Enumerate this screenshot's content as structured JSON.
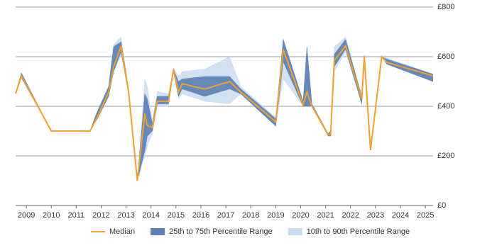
{
  "chart_data": {
    "type": "line-band",
    "x": [
      2008.57,
      2008.8,
      2010.0,
      2011.55,
      2011.85,
      2012.3,
      2012.5,
      2012.8,
      2013.1,
      2013.45,
      2013.75,
      2013.85,
      2014.05,
      2014.25,
      2014.7,
      2014.9,
      2015.1,
      2015.25,
      2016.15,
      2017.15,
      2017.6,
      2019.0,
      2019.3,
      2020.1,
      2020.25,
      2020.45,
      2021.1,
      2021.2,
      2021.35,
      2021.8,
      2022.45,
      2022.55,
      2022.8,
      2023.25,
      2023.45,
      2025.3
    ],
    "series": [
      {
        "name": "10th to 90th Percentile Range",
        "color": "#c9dbf0",
        "low": [
          451,
          515,
          300,
          300,
          350,
          440,
          540,
          610,
          450,
          100,
          200,
          240,
          290,
          400,
          400,
          540,
          430,
          450,
          420,
          410,
          450,
          320,
          510,
          400,
          400,
          400,
          280,
          280,
          540,
          620,
          410,
          600,
          223,
          600,
          570,
          500
        ],
        "high": [
          451,
          535,
          300,
          300,
          380,
          480,
          650,
          680,
          470,
          100,
          510,
          480,
          340,
          460,
          450,
          555,
          520,
          540,
          550,
          600,
          480,
          355,
          670,
          420,
          640,
          410,
          290,
          300,
          640,
          680,
          440,
          605,
          223,
          600,
          595,
          530
        ]
      },
      {
        "name": "25th to 75th Percentile Range",
        "color": "#5a80b4",
        "low": [
          451,
          515,
          300,
          300,
          350,
          440,
          540,
          620,
          450,
          100,
          220,
          280,
          300,
          410,
          410,
          540,
          440,
          470,
          440,
          470,
          450,
          320,
          580,
          400,
          400,
          400,
          280,
          280,
          560,
          630,
          410,
          600,
          223,
          600,
          570,
          500
        ],
        "high": [
          451,
          535,
          300,
          300,
          380,
          480,
          640,
          660,
          470,
          100,
          450,
          430,
          330,
          440,
          440,
          550,
          500,
          510,
          520,
          520,
          470,
          350,
          670,
          420,
          640,
          410,
          290,
          300,
          610,
          670,
          440,
          605,
          223,
          600,
          590,
          530
        ]
      },
      {
        "name": "Median",
        "color": "#f0a030",
        "values": [
          451,
          523,
          300,
          300,
          357,
          457,
          557,
          643,
          457,
          100,
          371,
          323,
          314,
          420,
          420,
          549,
          457,
          491,
          469,
          500,
          457,
          337,
          629,
          406,
          457,
          400,
          286,
          286,
          586,
          643,
          429,
          600,
          223,
          600,
          577,
          523
        ]
      }
    ],
    "xlim": [
      2008.57,
      2025.31
    ],
    "xticks": [
      2009,
      2010,
      2011,
      2012,
      2013,
      2014,
      2015,
      2016,
      2017,
      2018,
      2019,
      2020,
      2021,
      2022,
      2023,
      2024,
      2025
    ],
    "ylim": [
      0,
      800
    ],
    "yticks": [
      {
        "value": 0,
        "label": "£0"
      },
      {
        "value": 200,
        "label": "£200"
      },
      {
        "value": 400,
        "label": "£400"
      },
      {
        "value": 600,
        "label": "£600"
      },
      {
        "value": 800,
        "label": "£800"
      }
    ],
    "grid": true,
    "legend": "bottom"
  }
}
